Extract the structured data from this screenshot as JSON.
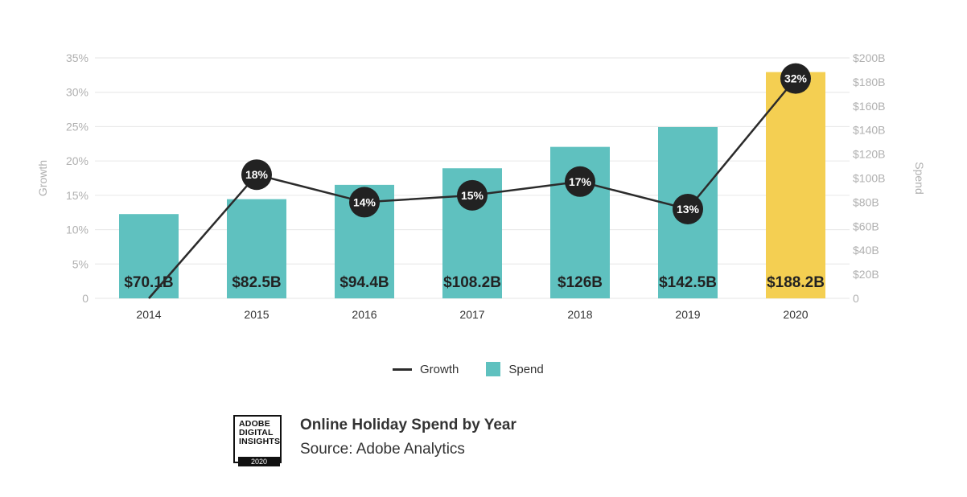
{
  "chart_data": {
    "type": "bar",
    "categories": [
      "2014",
      "2015",
      "2016",
      "2017",
      "2018",
      "2019",
      "2020"
    ],
    "series": [
      {
        "name": "Spend",
        "axis": "right",
        "values": [
          70.1,
          82.5,
          94.4,
          108.2,
          126,
          142.5,
          188.2
        ],
        "labels": [
          "$70.1B",
          "$82.5B",
          "$94.4B",
          "$108.2B",
          "$126B",
          "$142.5B",
          "$188.2B"
        ],
        "colors": [
          "#5fc1bf",
          "#5fc1bf",
          "#5fc1bf",
          "#5fc1bf",
          "#5fc1bf",
          "#5fc1bf",
          "#f4cf52"
        ]
      },
      {
        "name": "Growth",
        "type": "line",
        "axis": "left",
        "values": [
          0,
          18,
          14,
          15,
          17,
          13,
          32
        ],
        "labels": [
          "",
          "18%",
          "14%",
          "15%",
          "17%",
          "13%",
          "32%"
        ],
        "color": "#2b2b2b"
      }
    ],
    "ylabel": "Growth",
    "y2label": "Spend",
    "ylim": [
      0,
      35
    ],
    "y2lim": [
      0,
      200
    ],
    "yticks": [
      "0",
      "5%",
      "10%",
      "15%",
      "20%",
      "25%",
      "30%",
      "35%"
    ],
    "y2ticks": [
      "0",
      "$20B",
      "$40B",
      "$60B",
      "$80B",
      "$100B",
      "$120B",
      "$140B",
      "$160B",
      "$180B",
      "$200B"
    ],
    "grid": true,
    "legend": "bottom"
  },
  "legend": {
    "growth": "Growth",
    "spend": "Spend"
  },
  "footer": {
    "badge_line1": "ADOBE",
    "badge_line2": "DIGITAL",
    "badge_line3": "INSIGHTS",
    "badge_year": "2020",
    "title": "Online Holiday Spend by Year",
    "source": "Source: Adobe Analytics"
  }
}
